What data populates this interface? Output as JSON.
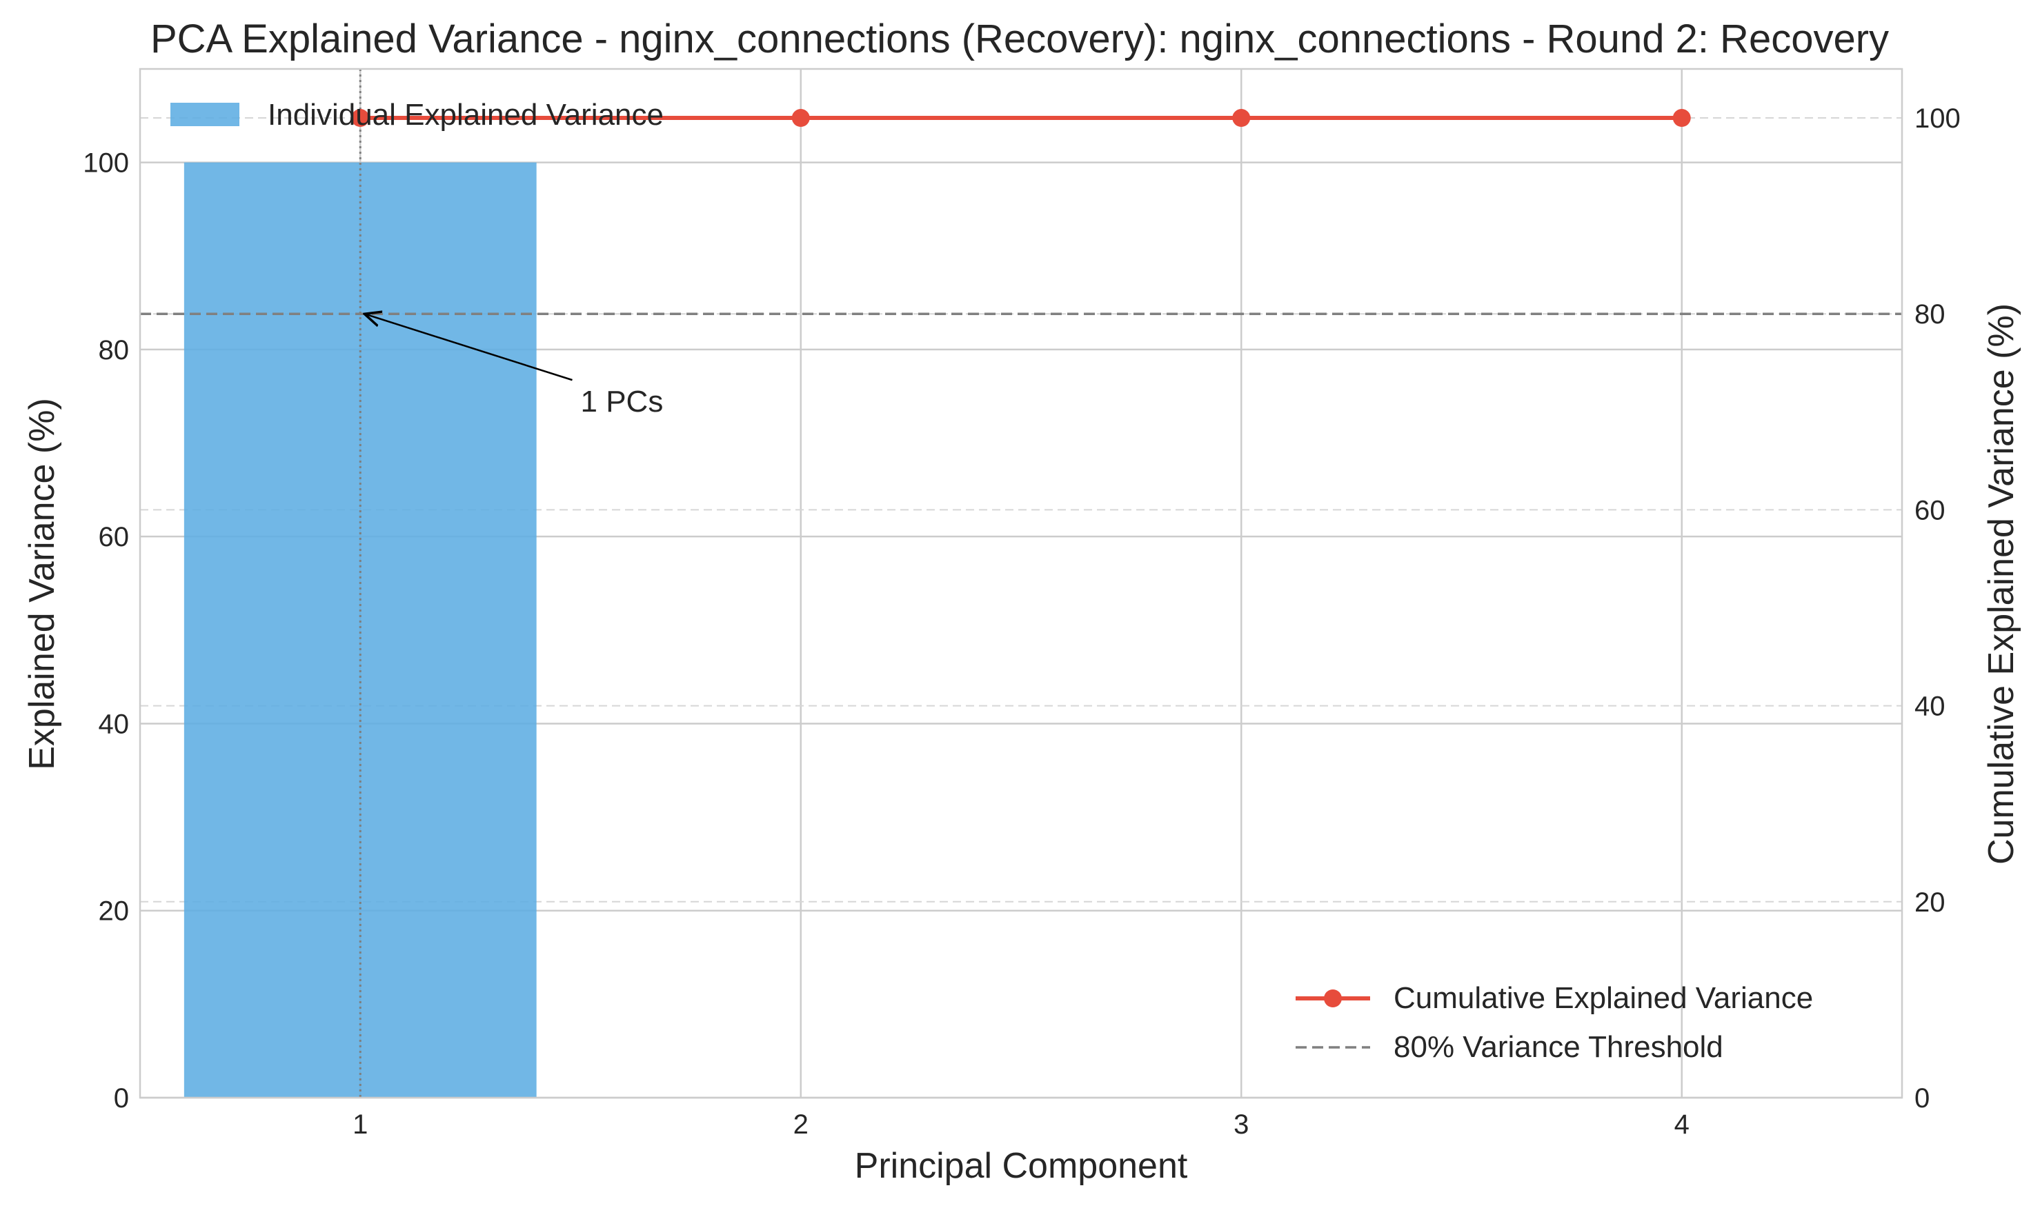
{
  "chart_data": {
    "type": "bar",
    "title": "PCA Explained Variance - nginx_connections (Recovery): nginx_connections - Round 2: Recovery",
    "xlabel": "Principal Component",
    "ylabel": "Explained Variance (%)",
    "y2label": "Cumulative Explained Variance (%)",
    "categories": [
      1,
      2,
      3,
      4
    ],
    "x_ticks": [
      "1",
      "2",
      "3",
      "4"
    ],
    "xlim": [
      0.5,
      4.5
    ],
    "ylim": [
      0,
      110
    ],
    "y2lim": [
      0,
      105
    ],
    "y_ticks": [
      0,
      20,
      40,
      60,
      80,
      100
    ],
    "y2_ticks": [
      0,
      20,
      40,
      60,
      80,
      100
    ],
    "grid": true,
    "series": [
      {
        "name": "Individual Explained Variance",
        "type": "bar",
        "axis": "left",
        "x": [
          1
        ],
        "values": [
          100
        ],
        "color": "#5DADE2"
      },
      {
        "name": "Cumulative Explained Variance",
        "type": "line",
        "axis": "right",
        "x": [
          1,
          2,
          3,
          4
        ],
        "values": [
          100,
          100,
          100,
          100
        ],
        "color": "#E74C3C"
      }
    ],
    "threshold": {
      "name": "80% Variance Threshold",
      "axis": "right",
      "value": 80,
      "color": "#808080"
    },
    "n_components_line": {
      "x": 1
    },
    "annotation": {
      "text": "1 PCs",
      "point": [
        1,
        80
      ],
      "text_at": [
        1.5,
        71
      ]
    },
    "legends": {
      "left": "top-left",
      "right": "bottom-right"
    }
  }
}
